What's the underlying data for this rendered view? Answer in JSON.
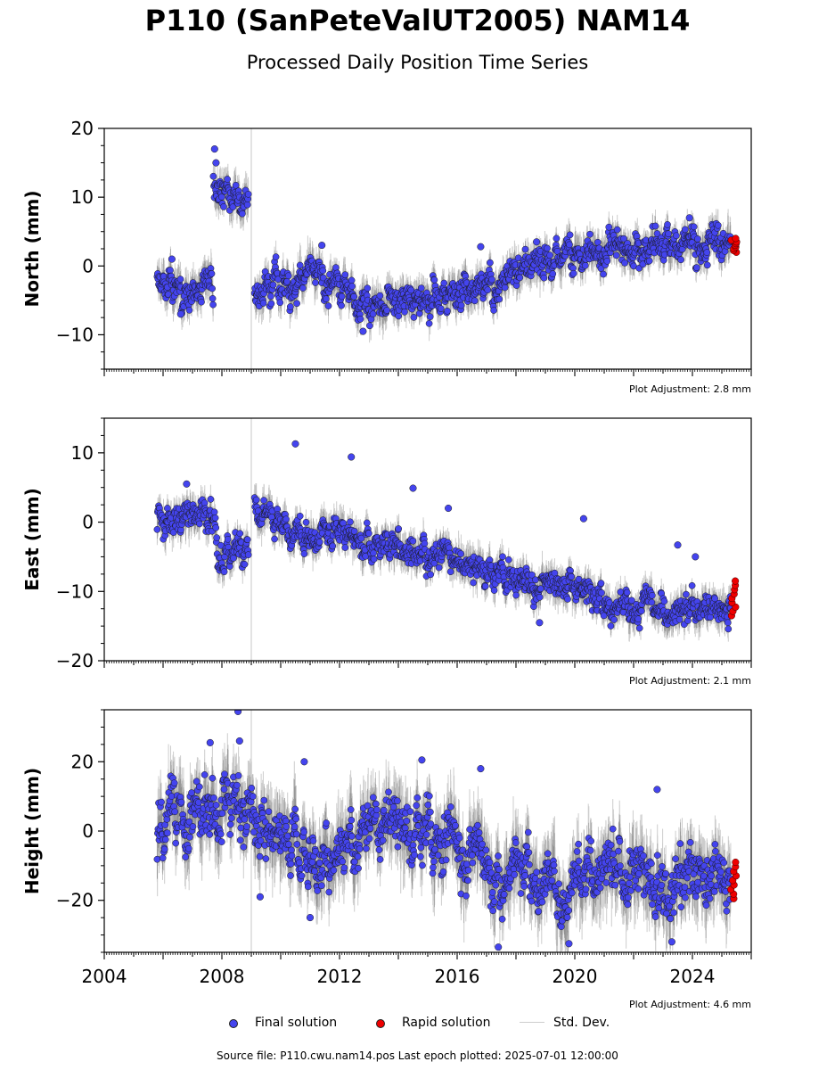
{
  "header": {
    "title": "P110 (SanPeteValUT2005) NAM14",
    "subtitle": "Processed Daily Position Time Series"
  },
  "chart_data": {
    "type": "scatter",
    "x_ticks": [
      "2004",
      "2008",
      "2012",
      "2016",
      "2020",
      "2024"
    ],
    "xlim": [
      2004.0,
      2026.0
    ],
    "last_epoch": 2025.5,
    "colors": {
      "final": "#4444ee",
      "rapid": "#ee0000",
      "stddev": "#c8c8c8",
      "step": "#d0d0d0"
    },
    "panels": [
      {
        "ylabel": "North (mm)",
        "ylim": [
          -15,
          20
        ],
        "yticks": [
          -10,
          0,
          10,
          20
        ],
        "adjustment": "Plot Adjustment: 2.8 mm",
        "segments": [
          {
            "x": [
              2005.8,
              2006.2,
              2006.6,
              2007.0,
              2007.4,
              2007.7
            ],
            "y": [
              -2.5,
              -3.0,
              -3.0,
              -3.5,
              -3.8,
              -3.0
            ]
          },
          {
            "x": [
              2007.7,
              2008.0,
              2008.5,
              2008.9
            ],
            "y": [
              11.0,
              10.5,
              10.5,
              10.2
            ]
          },
          {
            "x": [
              2009.1,
              2009.5,
              2010.0,
              2010.5,
              2011.0,
              2011.5,
              2012.0,
              2012.3,
              2012.5,
              2013.0,
              2013.5,
              2014.0,
              2014.5,
              2015.0,
              2015.5,
              2016.0,
              2016.5,
              2017.0,
              2017.5,
              2018.0,
              2018.5,
              2019.0,
              2019.5,
              2020.0,
              2020.5,
              2021.0,
              2021.5,
              2022.0,
              2022.5,
              2023.0,
              2023.5,
              2024.0,
              2024.5,
              2025.3
            ],
            "y": [
              -4.5,
              -3.0,
              -2.5,
              -2.0,
              -1.0,
              -2.5,
              -3.0,
              -3.5,
              -5.0,
              -6.0,
              -5.5,
              -5.0,
              -5.5,
              -5.0,
              -4.0,
              -4.0,
              -3.0,
              -2.0,
              -2.0,
              -1.0,
              0.0,
              0.5,
              1.5,
              2.0,
              2.0,
              2.5,
              2.5,
              2.5,
              3.0,
              3.5,
              4.0,
              3.5,
              3.5,
              3.0
            ]
          }
        ],
        "noise": 1.3,
        "outliers": [
          {
            "x": 2007.75,
            "y": 17.0
          },
          {
            "x": 2007.8,
            "y": 15.0
          },
          {
            "x": 2016.8,
            "y": 2.8
          },
          {
            "x": 2018.7,
            "y": 3.5
          },
          {
            "x": 2023.9,
            "y": 7.0
          },
          {
            "x": 2011.4,
            "y": 3.0
          },
          {
            "x": 2006.3,
            "y": 1.0
          },
          {
            "x": 2012.8,
            "y": -9.5
          },
          {
            "x": 2006.6,
            "y": -7.0
          }
        ],
        "rapid": {
          "x0": 2025.3,
          "x1": 2025.5,
          "ymin": 2.0,
          "ymax": 4.0
        }
      },
      {
        "ylabel": "East (mm)",
        "ylim": [
          -20,
          15
        ],
        "yticks": [
          -20,
          -10,
          0,
          10
        ],
        "adjustment": "Plot Adjustment: 2.1 mm",
        "segments": [
          {
            "x": [
              2005.8,
              2006.3,
              2006.8,
              2007.3,
              2007.7,
              2007.9,
              2008.3,
              2008.9
            ],
            "y": [
              0.0,
              0.5,
              1.0,
              1.5,
              1.0,
              -4.0,
              -4.5,
              -5.0
            ]
          },
          {
            "x": [
              2009.1,
              2009.5,
              2010.0,
              2010.5,
              2011.0,
              2011.5,
              2012.0,
              2012.5,
              2013.0,
              2013.5,
              2014.0,
              2014.5,
              2015.0,
              2015.5,
              2016.0,
              2016.5,
              2017.0,
              2017.5,
              2018.0,
              2018.5,
              2019.0,
              2019.5,
              2020.0,
              2020.5,
              2021.0,
              2021.5,
              2022.0,
              2022.5,
              2023.0,
              2023.5,
              2024.0,
              2024.5,
              2025.3
            ],
            "y": [
              2.5,
              1.0,
              -0.5,
              -1.5,
              -2.5,
              -1.5,
              -1.5,
              -2.5,
              -3.5,
              -3.0,
              -3.5,
              -4.0,
              -4.0,
              -4.5,
              -6.0,
              -6.5,
              -7.0,
              -7.5,
              -8.0,
              -9.0,
              -9.5,
              -9.0,
              -8.5,
              -10.0,
              -11.0,
              -12.0,
              -12.0,
              -11.5,
              -13.0,
              -12.5,
              -12.0,
              -12.0,
              -12.0
            ]
          }
        ],
        "noise": 1.2,
        "outliers": [
          {
            "x": 2010.5,
            "y": 11.3
          },
          {
            "x": 2012.4,
            "y": 9.4
          },
          {
            "x": 2014.5,
            "y": 4.9
          },
          {
            "x": 2015.7,
            "y": 2.0
          },
          {
            "x": 2020.3,
            "y": 0.5
          },
          {
            "x": 2023.5,
            "y": -3.3
          },
          {
            "x": 2018.8,
            "y": -14.5
          },
          {
            "x": 2024.1,
            "y": -5.0
          },
          {
            "x": 2006.8,
            "y": 5.5
          }
        ],
        "rapid": {
          "x0": 2025.3,
          "x1": 2025.5,
          "ymin": -13.5,
          "ymax": -8.5
        }
      },
      {
        "ylabel": "Height (mm)",
        "ylim": [
          -35,
          35
        ],
        "yticks": [
          -20,
          0,
          20
        ],
        "adjustment": "Plot Adjustment: 4.6 mm",
        "segments": [
          {
            "x": [
              2005.8,
              2006.3,
              2006.8,
              2007.3,
              2007.8,
              2008.3,
              2008.8,
              2009.3,
              2009.8,
              2010.3,
              2010.8,
              2011.3,
              2011.8,
              2012.3,
              2012.8,
              2013.3,
              2013.8,
              2014.3,
              2014.8,
              2015.3,
              2015.8,
              2016.3,
              2016.8,
              2017.3,
              2017.8,
              2018.3,
              2018.8,
              2019.3,
              2019.8,
              2020.3,
              2020.8,
              2021.3,
              2021.8,
              2022.3,
              2022.8,
              2023.3,
              2023.8,
              2024.3,
              2024.8,
              2025.3
            ],
            "y": [
              -2,
              4,
              2,
              6,
              5,
              10,
              6,
              0,
              -3,
              -2,
              -5,
              -12,
              -5,
              0,
              3,
              0,
              4,
              -2,
              2,
              -5,
              2,
              -10,
              -5,
              -15,
              -10,
              -8,
              -12,
              -14,
              -20,
              -12,
              -10,
              -8,
              -12,
              -9,
              -14,
              -20,
              -10,
              -12,
              -10,
              -16
            ]
          }
        ],
        "noise": 5.0,
        "outliers": [
          {
            "x": 2008.55,
            "y": 34.5
          },
          {
            "x": 2008.6,
            "y": 26.0
          },
          {
            "x": 2007.6,
            "y": 25.5
          },
          {
            "x": 2010.8,
            "y": 20.0
          },
          {
            "x": 2014.8,
            "y": 20.5
          },
          {
            "x": 2016.8,
            "y": 18.0
          },
          {
            "x": 2017.4,
            "y": -33.5
          },
          {
            "x": 2019.8,
            "y": -32.5
          },
          {
            "x": 2023.3,
            "y": -32.0
          },
          {
            "x": 2022.8,
            "y": 12.0
          },
          {
            "x": 2009.3,
            "y": -19.0
          },
          {
            "x": 2011.0,
            "y": -25.0
          }
        ],
        "rapid": {
          "x0": 2025.3,
          "x1": 2025.5,
          "ymin": -19.5,
          "ymax": -9.0
        }
      }
    ]
  },
  "legend": {
    "final": "Final solution",
    "rapid": "Rapid solution",
    "stddev": "Std. Dev."
  },
  "footer": {
    "source": "Source file: P110.cwu.nam14.pos  Last epoch plotted: 2025-07-01 12:00:00"
  }
}
